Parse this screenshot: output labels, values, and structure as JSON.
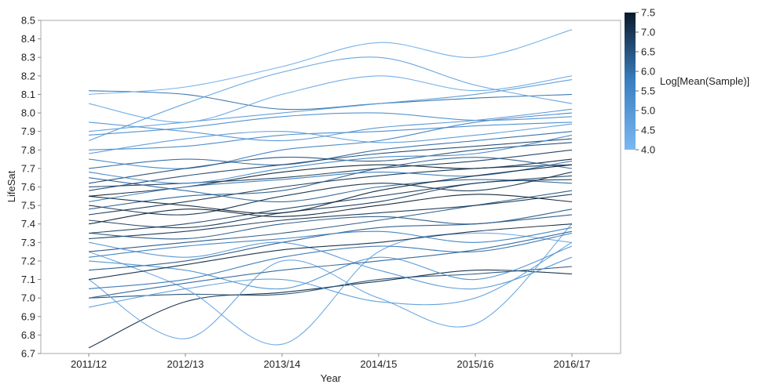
{
  "chart_data": {
    "type": "line",
    "title": "",
    "xlabel": "Year",
    "ylabel": "LifeSat",
    "categories": [
      "2011/12",
      "2012/13",
      "2013/14",
      "2014/15",
      "2015/16",
      "2016/17"
    ],
    "y_ticks": [
      "6.7",
      "6.8",
      "6.9",
      "7.0",
      "7.1",
      "7.2",
      "7.3",
      "7.4",
      "7.5",
      "7.6",
      "7.7",
      "7.8",
      "7.9",
      "8.0",
      "8.1",
      "8.2",
      "8.3",
      "8.4",
      "8.5"
    ],
    "ylim": [
      6.7,
      8.5
    ],
    "grid": false,
    "color_scale": {
      "title": "Log[Mean(Sample)]",
      "range": [
        4.0,
        7.5
      ],
      "ticks": [
        "4.0",
        "4.5",
        "5.0",
        "5.5",
        "6.0",
        "6.5",
        "7.0",
        "7.5"
      ],
      "low_color": "#7bb8f2",
      "mid_color": "#3a7fc0",
      "high_color": "#0b1a2a"
    },
    "series": [
      {
        "values": [
          6.73,
          6.98,
          7.03,
          7.09,
          7.15,
          7.13
        ],
        "color_value": 7.2
      },
      {
        "values": [
          7.0,
          7.02,
          7.02,
          7.1,
          7.13,
          7.17
        ],
        "color_value": 6.6
      },
      {
        "values": [
          8.12,
          8.1,
          8.02,
          8.05,
          8.08,
          8.1
        ],
        "color_value": 6.0
      },
      {
        "values": [
          8.1,
          8.14,
          8.25,
          8.38,
          8.3,
          8.45
        ],
        "color_value": 4.3
      },
      {
        "values": [
          7.25,
          7.05,
          6.75,
          7.25,
          7.35,
          7.3
        ],
        "color_value": 4.5
      },
      {
        "values": [
          7.1,
          6.78,
          7.2,
          7.0,
          6.86,
          7.4
        ],
        "color_value": 4.6
      },
      {
        "values": [
          6.95,
          7.05,
          7.1,
          6.98,
          7.0,
          7.3
        ],
        "color_value": 4.8
      },
      {
        "values": [
          7.55,
          7.6,
          7.68,
          7.72,
          7.7,
          7.75
        ],
        "color_value": 7.3
      },
      {
        "values": [
          7.45,
          7.52,
          7.6,
          7.66,
          7.7,
          7.72
        ],
        "color_value": 7.0
      },
      {
        "values": [
          7.35,
          7.4,
          7.48,
          7.55,
          7.62,
          7.66
        ],
        "color_value": 6.8
      },
      {
        "values": [
          7.6,
          7.62,
          7.65,
          7.7,
          7.74,
          7.8
        ],
        "color_value": 6.9
      },
      {
        "values": [
          7.25,
          7.3,
          7.35,
          7.42,
          7.5,
          7.58
        ],
        "color_value": 6.5
      },
      {
        "values": [
          7.8,
          7.82,
          7.88,
          7.9,
          7.93,
          7.95
        ],
        "color_value": 5.4
      },
      {
        "values": [
          7.9,
          7.95,
          8.0,
          8.05,
          8.1,
          8.18
        ],
        "color_value": 4.9
      },
      {
        "values": [
          7.65,
          7.58,
          7.52,
          7.6,
          7.64,
          7.62
        ],
        "color_value": 6.2
      },
      {
        "values": [
          7.15,
          7.2,
          7.3,
          7.38,
          7.4,
          7.45
        ],
        "color_value": 6.4
      },
      {
        "values": [
          7.05,
          7.1,
          7.22,
          7.28,
          7.25,
          7.35
        ],
        "color_value": 5.9
      },
      {
        "values": [
          7.7,
          7.75,
          7.72,
          7.8,
          7.85,
          7.9
        ],
        "color_value": 6.1
      },
      {
        "values": [
          7.5,
          7.45,
          7.55,
          7.62,
          7.58,
          7.68
        ],
        "color_value": 7.1
      },
      {
        "values": [
          7.4,
          7.48,
          7.44,
          7.5,
          7.56,
          7.52
        ],
        "color_value": 7.4
      },
      {
        "values": [
          8.05,
          7.95,
          8.1,
          8.2,
          8.12,
          8.2
        ],
        "color_value": 4.4
      },
      {
        "values": [
          7.85,
          8.05,
          8.22,
          8.3,
          8.15,
          8.05
        ],
        "color_value": 4.7
      },
      {
        "values": [
          7.2,
          7.15,
          7.05,
          7.22,
          7.1,
          7.28
        ],
        "color_value": 5.2
      },
      {
        "values": [
          7.3,
          7.22,
          7.3,
          7.15,
          7.05,
          7.22
        ],
        "color_value": 5.0
      },
      {
        "values": [
          7.58,
          7.66,
          7.72,
          7.78,
          7.82,
          7.86
        ],
        "color_value": 6.7
      },
      {
        "values": [
          7.48,
          7.55,
          7.58,
          7.7,
          7.76,
          7.7
        ],
        "color_value": 6.3
      },
      {
        "values": [
          7.75,
          7.7,
          7.8,
          7.85,
          7.95,
          8.0
        ],
        "color_value": 5.6
      },
      {
        "values": [
          7.95,
          7.9,
          7.85,
          7.92,
          7.96,
          8.02
        ],
        "color_value": 5.1
      },
      {
        "values": [
          7.1,
          7.18,
          7.26,
          7.3,
          7.36,
          7.4
        ],
        "color_value": 7.2
      },
      {
        "values": [
          7.32,
          7.36,
          7.42,
          7.46,
          7.5,
          7.56
        ],
        "color_value": 7.0
      },
      {
        "values": [
          7.62,
          7.7,
          7.76,
          7.74,
          7.8,
          7.84
        ],
        "color_value": 6.6
      },
      {
        "values": [
          7.42,
          7.38,
          7.46,
          7.52,
          7.62,
          7.64
        ],
        "color_value": 6.9
      },
      {
        "values": [
          7.52,
          7.6,
          7.64,
          7.68,
          7.66,
          7.74
        ],
        "color_value": 5.8
      },
      {
        "values": [
          7.68,
          7.62,
          7.7,
          7.76,
          7.78,
          7.88
        ],
        "color_value": 5.5
      },
      {
        "values": [
          7.22,
          7.28,
          7.32,
          7.36,
          7.3,
          7.38
        ],
        "color_value": 5.7
      },
      {
        "values": [
          7.88,
          7.92,
          7.98,
          8.0,
          7.96,
          7.98
        ],
        "color_value": 5.3
      },
      {
        "values": [
          7.0,
          7.08,
          7.15,
          7.2,
          7.26,
          7.36
        ],
        "color_value": 6.2
      },
      {
        "values": [
          7.55,
          7.5,
          7.46,
          7.58,
          7.66,
          7.72
        ],
        "color_value": 7.3
      },
      {
        "values": [
          7.78,
          7.86,
          7.9,
          7.84,
          7.88,
          7.94
        ],
        "color_value": 4.9
      },
      {
        "values": [
          7.35,
          7.32,
          7.4,
          7.44,
          7.4,
          7.48
        ],
        "color_value": 6.4
      }
    ]
  }
}
